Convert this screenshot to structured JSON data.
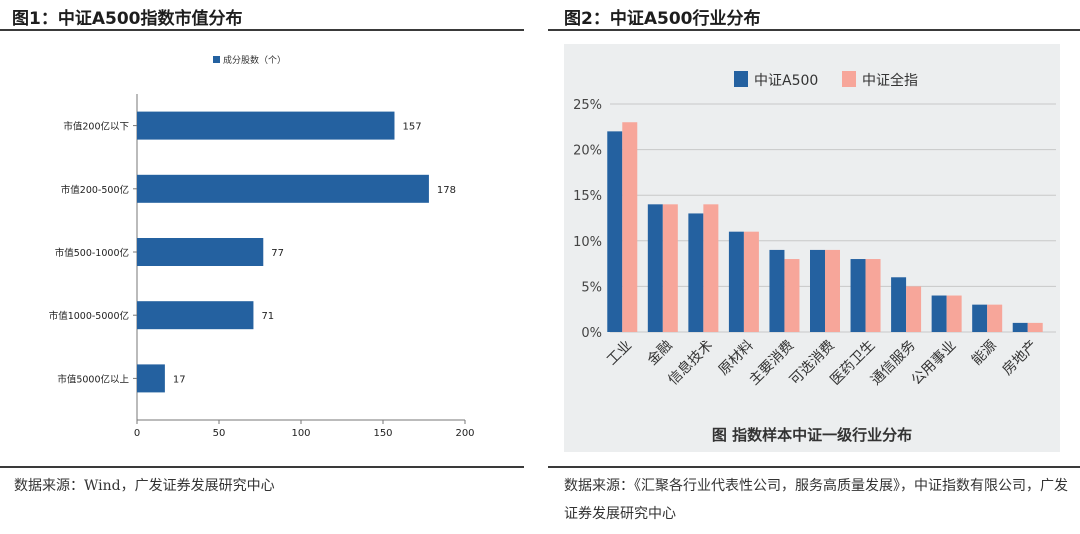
{
  "left": {
    "title": "图1：中证A500指数市值分布",
    "source": "数据来源：Wind，广发证券发展研究中心",
    "chart_data": {
      "type": "bar",
      "orientation": "horizontal",
      "legend": "成分股数（个）",
      "legend_position": "top",
      "categories": [
        "市值200亿以下",
        "市值200-500亿",
        "市值500-1000亿",
        "市值1000-5000亿",
        "市值5000亿以上"
      ],
      "series": [
        {
          "name": "成分股数（个）",
          "values": [
            157,
            178,
            77,
            71,
            17
          ]
        }
      ],
      "xlim": [
        0,
        200
      ],
      "xticks": [
        "0",
        "50",
        "100",
        "150",
        "200"
      ],
      "grid": false,
      "color": "#2461a0"
    }
  },
  "right": {
    "title": "图2：中证A500行业分布",
    "source": "数据来源：《汇聚各行业代表性公司，服务高质量发展》，中证指数有限公司，广发证券发展研究中心",
    "chart_data": {
      "type": "bar",
      "title": "图 指数样本中证一级行业分布",
      "legend_position": "top",
      "categories": [
        "工业",
        "金融",
        "信息技术",
        "原材料",
        "主要消费",
        "可选消费",
        "医药卫生",
        "通信服务",
        "公用事业",
        "能源",
        "房地产"
      ],
      "series": [
        {
          "name": "中证A500",
          "values": [
            22,
            14,
            13,
            11,
            9,
            9,
            8,
            6,
            4,
            3,
            1
          ],
          "color": "#2461a0"
        },
        {
          "name": "中证全指",
          "values": [
            23,
            14,
            14,
            11,
            8,
            9,
            8,
            5,
            4,
            3,
            1
          ],
          "color": "#f7a69a"
        }
      ],
      "ylim": [
        0,
        25
      ],
      "yticks": [
        "0%",
        "5%",
        "10%",
        "15%",
        "20%",
        "25%"
      ],
      "grid": true,
      "background": "#eceeef"
    }
  }
}
